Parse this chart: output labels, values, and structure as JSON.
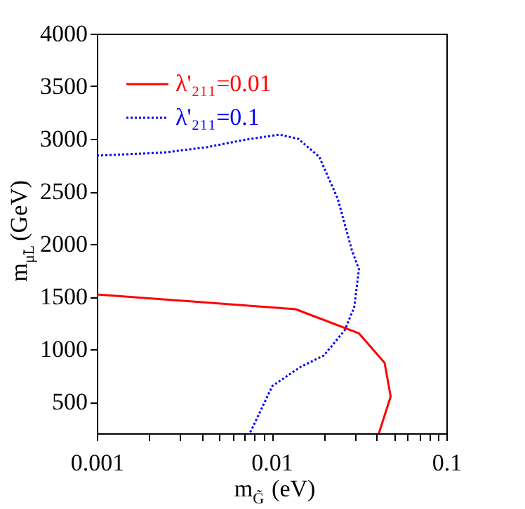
{
  "chart_data": {
    "type": "line",
    "xlabel": "m$_{G̃}$ (eV)",
    "ylabel": "m$_{μ̃L}$ (GeV)",
    "log": "x",
    "xlim": [
      0.001,
      0.1
    ],
    "ylim": [
      200,
      4000
    ],
    "xticks": [
      0.001,
      {
        "value": 0.002,
        "label": null
      },
      {
        "value": 0.003,
        "label": null
      },
      {
        "value": 0.004,
        "label": null
      },
      {
        "value": 0.005,
        "label": null
      },
      {
        "value": 0.006,
        "label": null
      },
      {
        "value": 0.007,
        "label": null
      },
      {
        "value": 0.008,
        "label": null
      },
      {
        "value": 0.009,
        "label": null
      },
      0.01,
      {
        "value": 0.02,
        "label": null
      },
      {
        "value": 0.03,
        "label": null
      },
      {
        "value": 0.04,
        "label": null
      },
      {
        "value": 0.05,
        "label": null
      },
      {
        "value": 0.06,
        "label": null
      },
      {
        "value": 0.07,
        "label": null
      },
      {
        "value": 0.08,
        "label": null
      },
      {
        "value": 0.09,
        "label": null
      },
      0.1
    ],
    "yticks": [
      500,
      1000,
      1500,
      2000,
      2500,
      3000,
      3500,
      4000
    ],
    "grid": false,
    "legend": "top left",
    "marker": "none",
    "series": [
      {
        "name": "λ'₂₁₁=0.01",
        "color": "#ff0000",
        "line_style": "solid",
        "x": [
          0.001,
          0.0137,
          0.0316,
          0.0443,
          0.048,
          0.0411
        ],
        "values": [
          1520,
          1380,
          1150,
          870,
          550,
          200
        ]
      },
      {
        "name": "λ'₂₁₁=0.1",
        "color": "#0000ff",
        "line_style": "dotted",
        "x": [
          0.001,
          0.00243,
          0.00425,
          0.00697,
          0.0111,
          0.0142,
          0.0187,
          0.0239,
          0.0288,
          0.0316,
          0.0297,
          0.0262,
          0.0199,
          0.0146,
          0.0101,
          0.0075
        ],
        "values": [
          2840,
          2870,
          2920,
          2990,
          3040,
          3000,
          2830,
          2430,
          1940,
          1760,
          1400,
          1180,
          940,
          830,
          650,
          200
        ]
      }
    ]
  }
}
